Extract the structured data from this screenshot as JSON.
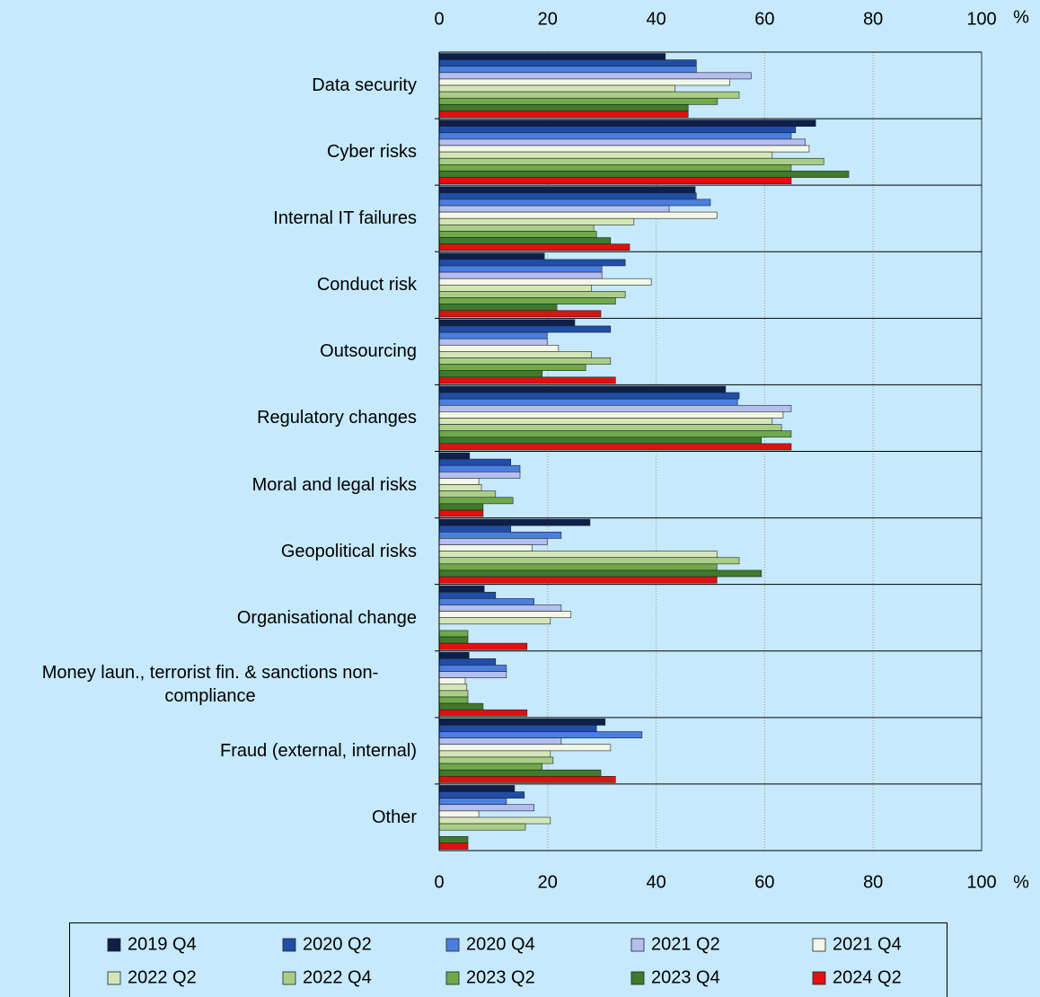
{
  "chart_data": {
    "type": "bar",
    "orientation": "horizontal",
    "categories": [
      "Data security",
      "Cyber risks",
      "Internal IT failures",
      "Conduct risk",
      "Outsourcing",
      "Regulatory changes",
      "Moral and legal risks",
      "Geopolitical risks",
      "Organisational change",
      "Money laun., terrorist fin. & sanctions non-compliance",
      "Fraud (external, internal)",
      "Other"
    ],
    "series": [
      {
        "name": "2019 Q4",
        "color": "#0d1f4a",
        "values": [
          41.7,
          69.4,
          47.2,
          19.4,
          25,
          52.8,
          5.6,
          27.8,
          8.3,
          5.5,
          30.6,
          13.9
        ]
      },
      {
        "name": "2020 Q2",
        "color": "#1f4ea8",
        "values": [
          47.4,
          65.7,
          47.4,
          34.3,
          31.6,
          55.3,
          13.2,
          13.2,
          10.4,
          10.4,
          29,
          15.7
        ]
      },
      {
        "name": "2020 Q4",
        "color": "#4a7fe0",
        "values": [
          47.4,
          64.9,
          50,
          30,
          19.9,
          55,
          14.9,
          22.5,
          17.5,
          12.4,
          37.4,
          12.4
        ]
      },
      {
        "name": "2021 Q2",
        "color": "#b4bff0",
        "values": [
          57.5,
          67.5,
          42.4,
          30,
          19.9,
          64.9,
          14.9,
          19.9,
          22.5,
          12.4,
          22.5,
          17.5
        ]
      },
      {
        "name": "2021 Q4",
        "color": "#f2f7e8",
        "values": [
          53.6,
          68.2,
          51.2,
          39.1,
          22,
          63.4,
          7.3,
          17.1,
          24.3,
          4.8,
          31.6,
          7.3
        ]
      },
      {
        "name": "2022 Q2",
        "color": "#d4e6b8",
        "values": [
          43.5,
          61.4,
          35.9,
          28.1,
          28.1,
          61.4,
          7.8,
          51.2,
          20.5,
          5.1,
          20.5,
          20.5
        ]
      },
      {
        "name": "2022 Q4",
        "color": "#a9cf87",
        "values": [
          55.3,
          70.9,
          28.5,
          34.3,
          31.6,
          63.1,
          10.4,
          55.3,
          0,
          5.3,
          21,
          15.9
        ]
      },
      {
        "name": "2023 Q2",
        "color": "#6fa94a",
        "values": [
          51.3,
          64.9,
          29,
          32.5,
          27,
          64.9,
          13.6,
          51.2,
          5.3,
          5.3,
          19,
          0
        ]
      },
      {
        "name": "2023 Q4",
        "color": "#3f7a2d",
        "values": [
          45.9,
          75.5,
          31.6,
          21.7,
          19,
          59.4,
          8.1,
          59.4,
          5.3,
          8.1,
          29.8,
          5.3
        ]
      },
      {
        "name": "2024 Q2",
        "color": "#e31010",
        "values": [
          45.9,
          64.9,
          35.1,
          29.8,
          32.5,
          64.9,
          8.1,
          51.2,
          16.2,
          16.2,
          32.5,
          5.3
        ]
      }
    ],
    "xlim": [
      0,
      100
    ],
    "xticks": [
      0,
      20,
      40,
      60,
      80,
      100
    ],
    "x_unit": "%",
    "grid": true
  }
}
